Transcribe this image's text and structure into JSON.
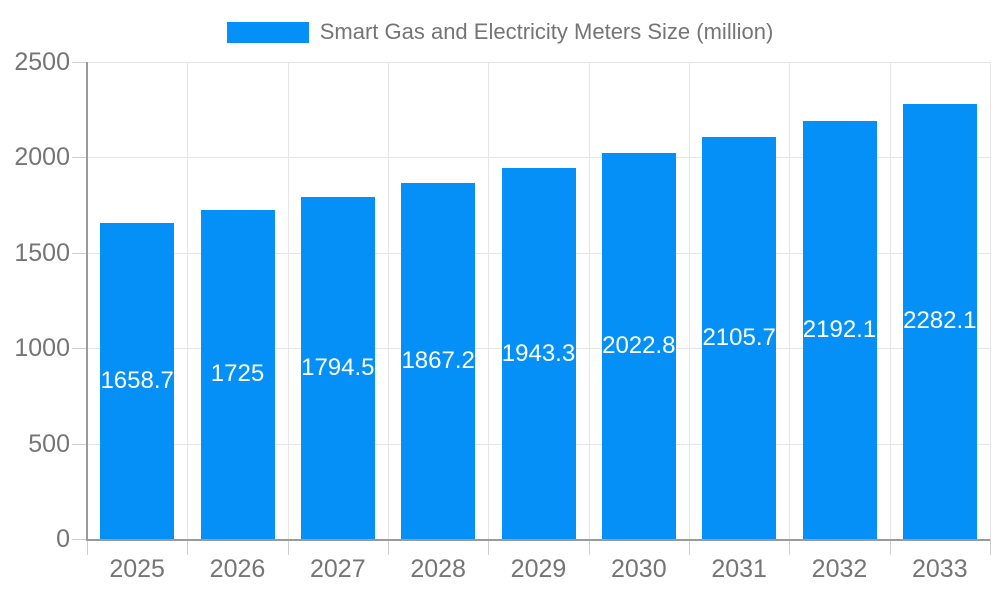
{
  "legend": {
    "label": "Smart Gas and Electricity Meters Size (million)",
    "swatch_color": "#0590F8"
  },
  "chart_data": {
    "type": "bar",
    "title": "Smart Gas and Electricity Meters Size (million)",
    "categories": [
      "2025",
      "2026",
      "2027",
      "2028",
      "2029",
      "2030",
      "2031",
      "2032",
      "2033"
    ],
    "values": [
      1658.7,
      1725,
      1794.5,
      1867.2,
      1943.3,
      2022.8,
      2105.7,
      2192.1,
      2282.1
    ],
    "value_labels": [
      "1658.7",
      "1725",
      "1794.5",
      "1867.2",
      "1943.3",
      "2022.8",
      "2105.7",
      "2192.1",
      "2282.1"
    ],
    "xlabel": "",
    "ylabel": "",
    "ylim": [
      0,
      2500
    ],
    "yticks": [
      0,
      500,
      1000,
      1500,
      2000,
      2500
    ],
    "grid": true,
    "legend_position": "top",
    "colors": {
      "bar": "#0590F8",
      "value_label": "#FFFFFF",
      "axis_text": "#757575",
      "grid_line": "#E6E6E6",
      "axis_line": "#9A9A9A",
      "tick_line": "#CFCFCF",
      "background": "#FFFFFF"
    }
  }
}
